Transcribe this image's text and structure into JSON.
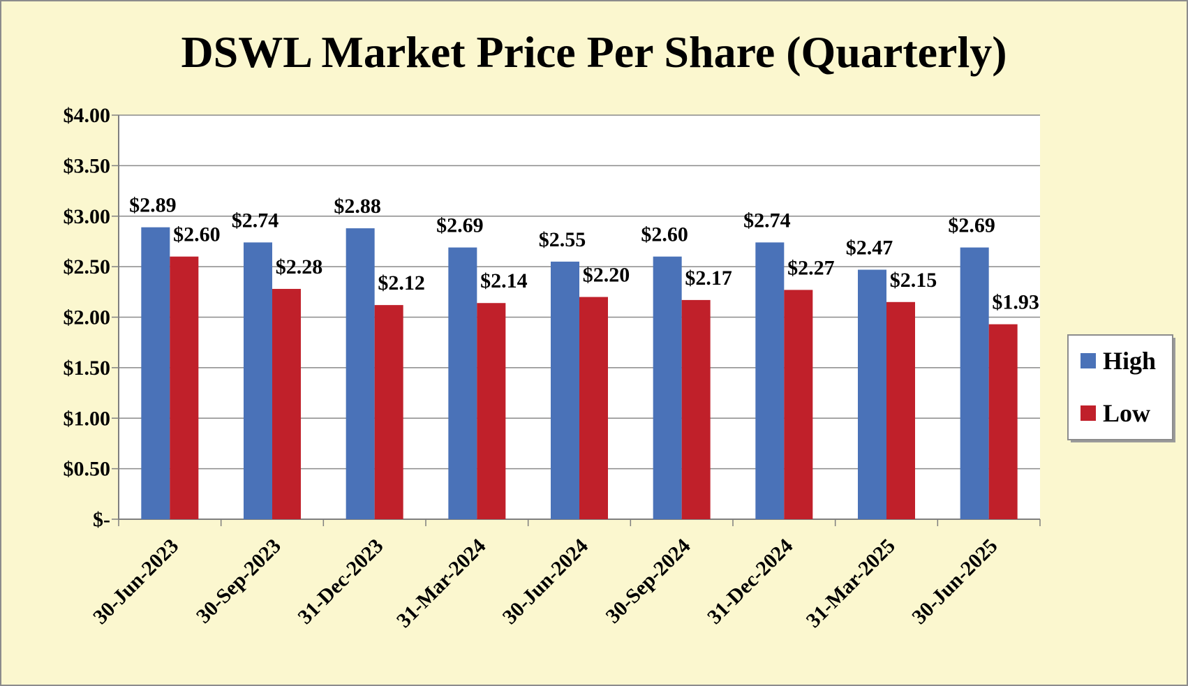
{
  "chart_data": {
    "type": "bar",
    "title": "DSWL Market Price Per Share (Quarterly)",
    "categories": [
      "30-Jun-2023",
      "30-Sep-2023",
      "31-Dec-2023",
      "31-Mar-2024",
      "30-Jun-2024",
      "30-Sep-2024",
      "31-Dec-2024",
      "31-Mar-2025",
      "30-Jun-2025"
    ],
    "series": [
      {
        "name": "High",
        "color": "#4a72b8",
        "values": [
          2.89,
          2.74,
          2.88,
          2.69,
          2.55,
          2.6,
          2.74,
          2.47,
          2.69
        ],
        "labels": [
          "$2.89",
          "$2.74",
          "$2.88",
          "$2.69",
          "$2.55",
          "$2.60",
          "$2.74",
          "$2.47",
          "$2.69"
        ]
      },
      {
        "name": "Low",
        "color": "#c0202a",
        "values": [
          2.6,
          2.28,
          2.12,
          2.14,
          2.2,
          2.17,
          2.27,
          2.15,
          1.93
        ],
        "labels": [
          "$2.60",
          "$2.28",
          "$2.12",
          "$2.14",
          "$2.20",
          "$2.17",
          "$2.27",
          "$2.15",
          "$1.93"
        ]
      }
    ],
    "ylim": [
      0,
      4
    ],
    "yticks": [
      0,
      0.5,
      1,
      1.5,
      2,
      2.5,
      3,
      3.5,
      4
    ],
    "ytick_labels": [
      "$-",
      "$0.50",
      "$1.00",
      "$1.50",
      "$2.00",
      "$2.50",
      "$3.00",
      "$3.50",
      "$4.00"
    ],
    "grid": true,
    "legend": "right",
    "background_color": "#fbf7cf",
    "plot_background_color": "#ffffff"
  }
}
